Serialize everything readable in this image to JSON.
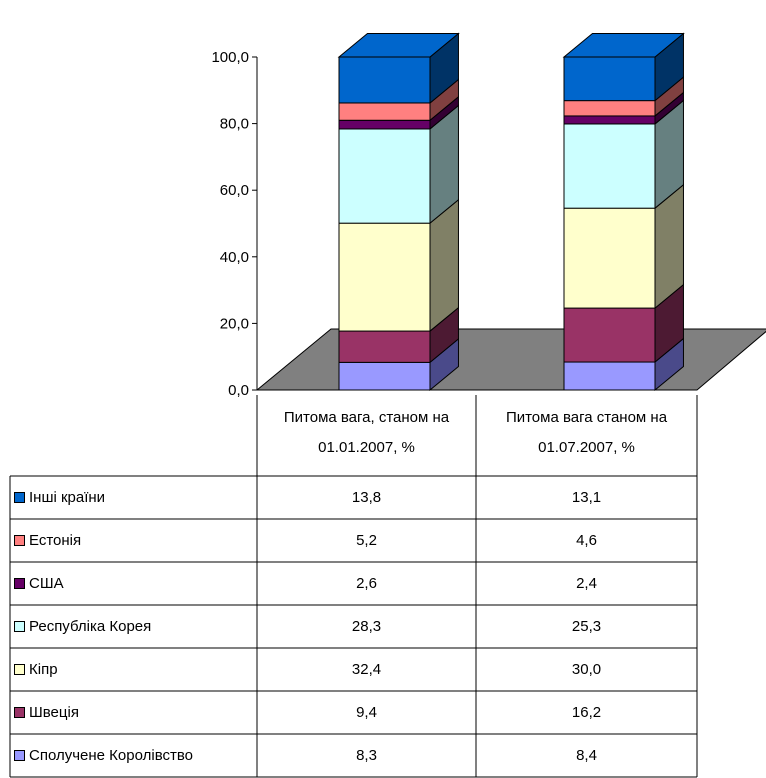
{
  "chart_data": {
    "type": "bar",
    "stacked": true,
    "three_d": true,
    "ylim": [
      0,
      100
    ],
    "y_ticks": [
      "0,0",
      "20,0",
      "40,0",
      "60,0",
      "80,0",
      "100,0"
    ],
    "categories": [
      "Питома вага, станом на 01.01.2007, %",
      "Питома вага станом на 01.07.2007, %"
    ],
    "category_lines": [
      [
        "Питома вага, станом на",
        "01.01.2007, %"
      ],
      [
        "Питома вага станом на",
        "01.07.2007, %"
      ]
    ],
    "series": [
      {
        "name": "Сполучене Королівство",
        "values": [
          8.3,
          8.4
        ],
        "labels": [
          "8,3",
          "8,4"
        ],
        "color": "#9999ff",
        "side": "#4a4a8a"
      },
      {
        "name": "Швеція",
        "values": [
          9.4,
          16.2
        ],
        "labels": [
          "9,4",
          "16,2"
        ],
        "color": "#993366",
        "side": "#4d1a33"
      },
      {
        "name": "Кіпр",
        "values": [
          32.4,
          30.0
        ],
        "labels": [
          "32,4",
          "30,0"
        ],
        "color": "#ffffcc",
        "side": "#808066"
      },
      {
        "name": "Республіка Корея",
        "values": [
          28.3,
          25.3
        ],
        "labels": [
          "28,3",
          "25,3"
        ],
        "color": "#ccffff",
        "side": "#668080"
      },
      {
        "name": "США",
        "values": [
          2.6,
          2.4
        ],
        "labels": [
          "2,6",
          "2,4"
        ],
        "color": "#660066",
        "side": "#330033"
      },
      {
        "name": "Естонія",
        "values": [
          5.2,
          4.6
        ],
        "labels": [
          "5,2",
          "4,6"
        ],
        "color": "#ff8080",
        "side": "#804040"
      },
      {
        "name": "Інші країни",
        "values": [
          13.8,
          13.1
        ],
        "labels": [
          "13,8",
          "13,1"
        ],
        "color": "#0066cc",
        "side": "#003366"
      }
    ],
    "floor_color": "#808080",
    "legend": "data-table"
  }
}
